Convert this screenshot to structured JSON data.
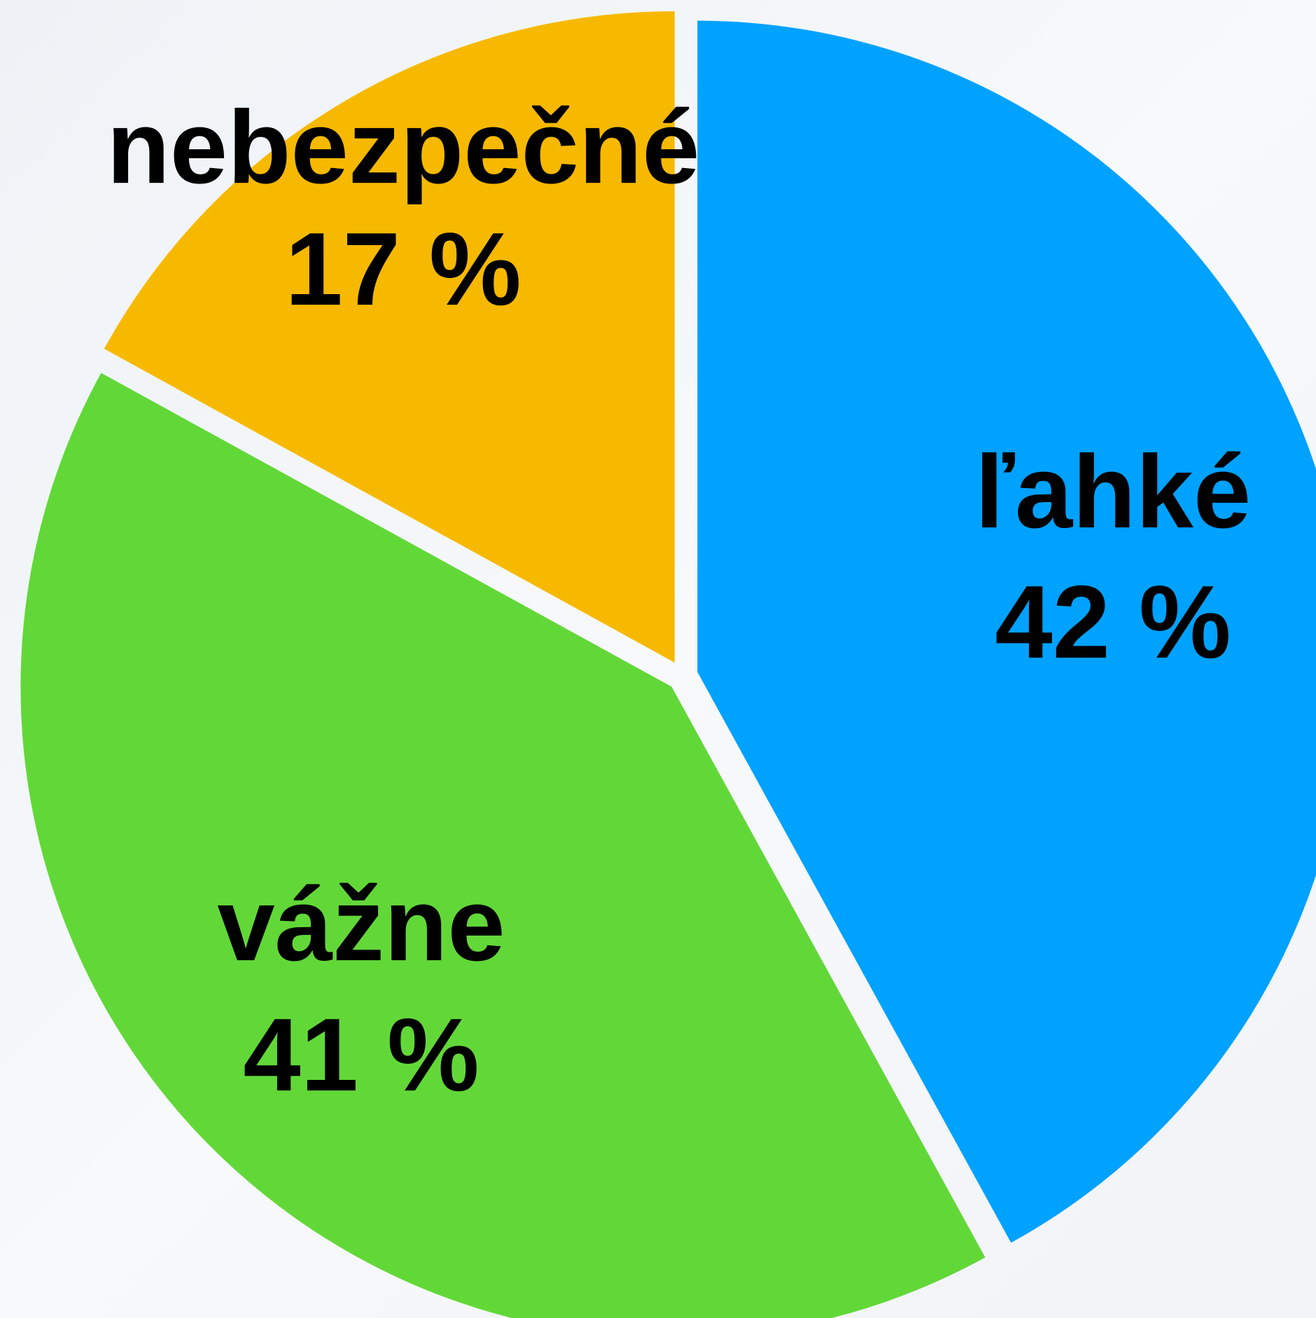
{
  "chart_data": {
    "type": "pie",
    "categories": [
      "ľahké",
      "vážne",
      "nebezpečné"
    ],
    "values": [
      42,
      41,
      17
    ],
    "value_labels": [
      "42 %",
      "41 %",
      "17 %"
    ],
    "colors": [
      "#00a2ff",
      "#62d838",
      "#f7b900"
    ]
  }
}
